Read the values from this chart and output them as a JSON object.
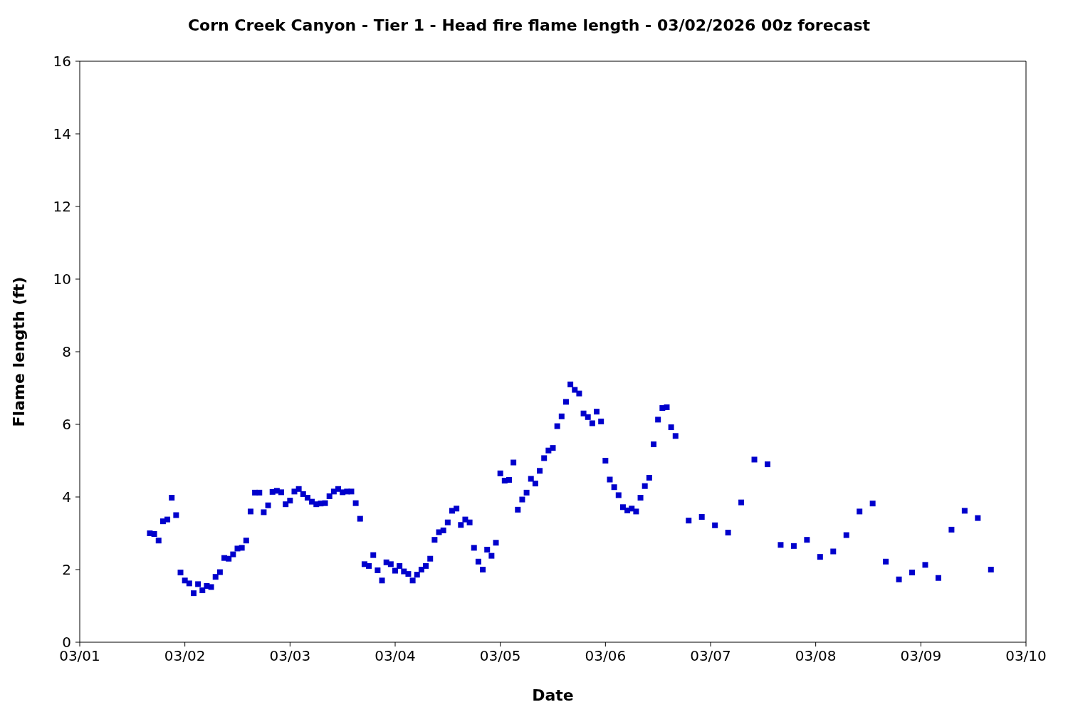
{
  "chart_data": {
    "type": "scatter",
    "title": "Corn Creek Canyon - Tier 1 - Head fire flame length - 03/02/2026 00z forecast",
    "xlabel": "Date",
    "ylabel": "Flame length (ft)",
    "x": [
      "2026-03-01T16:00",
      "2026-03-01T17:00",
      "2026-03-01T18:00",
      "2026-03-01T19:00",
      "2026-03-01T20:00",
      "2026-03-01T21:00",
      "2026-03-01T22:00",
      "2026-03-01T23:00",
      "2026-03-02T00:00",
      "2026-03-02T01:00",
      "2026-03-02T02:00",
      "2026-03-02T03:00",
      "2026-03-02T04:00",
      "2026-03-02T05:00",
      "2026-03-02T06:00",
      "2026-03-02T07:00",
      "2026-03-02T08:00",
      "2026-03-02T09:00",
      "2026-03-02T10:00",
      "2026-03-02T11:00",
      "2026-03-02T12:00",
      "2026-03-02T13:00",
      "2026-03-02T14:00",
      "2026-03-02T15:00",
      "2026-03-02T16:00",
      "2026-03-02T17:00",
      "2026-03-02T18:00",
      "2026-03-02T19:00",
      "2026-03-02T20:00",
      "2026-03-02T21:00",
      "2026-03-02T22:00",
      "2026-03-02T23:00",
      "2026-03-03T00:00",
      "2026-03-03T01:00",
      "2026-03-03T02:00",
      "2026-03-03T03:00",
      "2026-03-03T04:00",
      "2026-03-03T05:00",
      "2026-03-03T06:00",
      "2026-03-03T07:00",
      "2026-03-03T08:00",
      "2026-03-03T09:00",
      "2026-03-03T10:00",
      "2026-03-03T11:00",
      "2026-03-03T12:00",
      "2026-03-03T13:00",
      "2026-03-03T14:00",
      "2026-03-03T15:00",
      "2026-03-03T16:00",
      "2026-03-03T17:00",
      "2026-03-03T18:00",
      "2026-03-03T19:00",
      "2026-03-03T20:00",
      "2026-03-03T21:00",
      "2026-03-03T22:00",
      "2026-03-03T23:00",
      "2026-03-04T00:00",
      "2026-03-04T01:00",
      "2026-03-04T02:00",
      "2026-03-04T03:00",
      "2026-03-04T04:00",
      "2026-03-04T05:00",
      "2026-03-04T06:00",
      "2026-03-04T07:00",
      "2026-03-04T08:00",
      "2026-03-04T09:00",
      "2026-03-04T10:00",
      "2026-03-04T11:00",
      "2026-03-04T12:00",
      "2026-03-04T13:00",
      "2026-03-04T14:00",
      "2026-03-04T15:00",
      "2026-03-04T16:00",
      "2026-03-04T17:00",
      "2026-03-04T18:00",
      "2026-03-04T19:00",
      "2026-03-04T20:00",
      "2026-03-04T21:00",
      "2026-03-04T22:00",
      "2026-03-04T23:00",
      "2026-03-05T00:00",
      "2026-03-05T01:00",
      "2026-03-05T02:00",
      "2026-03-05T03:00",
      "2026-03-05T04:00",
      "2026-03-05T05:00",
      "2026-03-05T06:00",
      "2026-03-05T07:00",
      "2026-03-05T08:00",
      "2026-03-05T09:00",
      "2026-03-05T10:00",
      "2026-03-05T11:00",
      "2026-03-05T12:00",
      "2026-03-05T13:00",
      "2026-03-05T14:00",
      "2026-03-05T15:00",
      "2026-03-05T16:00",
      "2026-03-05T17:00",
      "2026-03-05T18:00",
      "2026-03-05T19:00",
      "2026-03-05T20:00",
      "2026-03-05T21:00",
      "2026-03-05T22:00",
      "2026-03-05T23:00",
      "2026-03-06T00:00",
      "2026-03-06T01:00",
      "2026-03-06T02:00",
      "2026-03-06T03:00",
      "2026-03-06T04:00",
      "2026-03-06T05:00",
      "2026-03-06T06:00",
      "2026-03-06T07:00",
      "2026-03-06T08:00",
      "2026-03-06T09:00",
      "2026-03-06T10:00",
      "2026-03-06T11:00",
      "2026-03-06T12:00",
      "2026-03-06T13:00",
      "2026-03-06T14:00",
      "2026-03-06T15:00",
      "2026-03-06T16:00",
      "2026-03-06T19:00",
      "2026-03-06T22:00",
      "2026-03-07T01:00",
      "2026-03-07T04:00",
      "2026-03-07T07:00",
      "2026-03-07T10:00",
      "2026-03-07T13:00",
      "2026-03-07T16:00",
      "2026-03-07T19:00",
      "2026-03-07T22:00",
      "2026-03-08T01:00",
      "2026-03-08T04:00",
      "2026-03-08T07:00",
      "2026-03-08T10:00",
      "2026-03-08T13:00",
      "2026-03-08T16:00",
      "2026-03-08T19:00",
      "2026-03-08T22:00",
      "2026-03-09T01:00",
      "2026-03-09T04:00",
      "2026-03-09T07:00",
      "2026-03-09T10:00",
      "2026-03-09T13:00",
      "2026-03-09T16:00"
    ],
    "values": [
      3.0,
      2.98,
      2.8,
      3.33,
      3.38,
      3.98,
      3.5,
      1.92,
      1.7,
      1.62,
      1.35,
      1.6,
      1.43,
      1.55,
      1.52,
      1.8,
      1.93,
      2.32,
      2.3,
      2.42,
      2.58,
      2.6,
      2.8,
      3.6,
      4.12,
      4.12,
      3.58,
      3.77,
      4.14,
      4.17,
      4.13,
      3.8,
      3.9,
      4.15,
      4.22,
      4.08,
      3.98,
      3.87,
      3.8,
      3.82,
      3.83,
      4.02,
      4.15,
      4.22,
      4.13,
      4.15,
      4.15,
      3.83,
      3.4,
      2.15,
      2.1,
      2.4,
      1.98,
      1.7,
      2.2,
      2.15,
      1.97,
      2.1,
      1.95,
      1.88,
      1.7,
      1.86,
      2.0,
      2.1,
      2.3,
      2.82,
      3.03,
      3.08,
      3.3,
      3.62,
      3.68,
      3.23,
      3.38,
      3.3,
      2.6,
      2.22,
      2.0,
      2.55,
      2.38,
      2.74,
      4.65,
      4.45,
      4.47,
      4.95,
      3.65,
      3.93,
      4.12,
      4.5,
      4.37,
      4.72,
      5.07,
      5.28,
      5.35,
      5.95,
      6.22,
      6.62,
      7.1,
      6.95,
      6.85,
      6.3,
      6.2,
      6.03,
      6.35,
      6.08,
      5.0,
      4.48,
      4.27,
      4.05,
      3.72,
      3.63,
      3.68,
      3.6,
      3.98,
      4.3,
      4.53,
      5.45,
      6.13,
      6.45,
      6.47,
      5.92,
      5.68,
      3.35,
      3.45,
      3.22,
      3.02,
      3.85,
      5.03,
      4.9,
      2.68,
      2.65,
      2.82,
      2.35,
      2.5,
      2.95,
      3.6,
      3.82,
      2.22,
      1.73,
      1.92,
      2.13,
      1.77,
      3.1,
      3.62,
      3.42,
      2.0
    ],
    "color": "#0000cc",
    "marker": "square",
    "legend": false,
    "grid": false,
    "xlim": [
      "2026-03-01",
      "2026-03-10"
    ],
    "xticks": [
      {
        "value": "2026-03-01",
        "label": "03/01"
      },
      {
        "value": "2026-03-02",
        "label": "03/02"
      },
      {
        "value": "2026-03-03",
        "label": "03/03"
      },
      {
        "value": "2026-03-04",
        "label": "03/04"
      },
      {
        "value": "2026-03-05",
        "label": "03/05"
      },
      {
        "value": "2026-03-06",
        "label": "03/06"
      },
      {
        "value": "2026-03-07",
        "label": "03/07"
      },
      {
        "value": "2026-03-08",
        "label": "03/08"
      },
      {
        "value": "2026-03-09",
        "label": "03/09"
      },
      {
        "value": "2026-03-10",
        "label": "03/10"
      }
    ],
    "ylim": [
      0,
      16
    ],
    "yticks": [
      0,
      2,
      4,
      6,
      8,
      10,
      12,
      14,
      16
    ]
  }
}
